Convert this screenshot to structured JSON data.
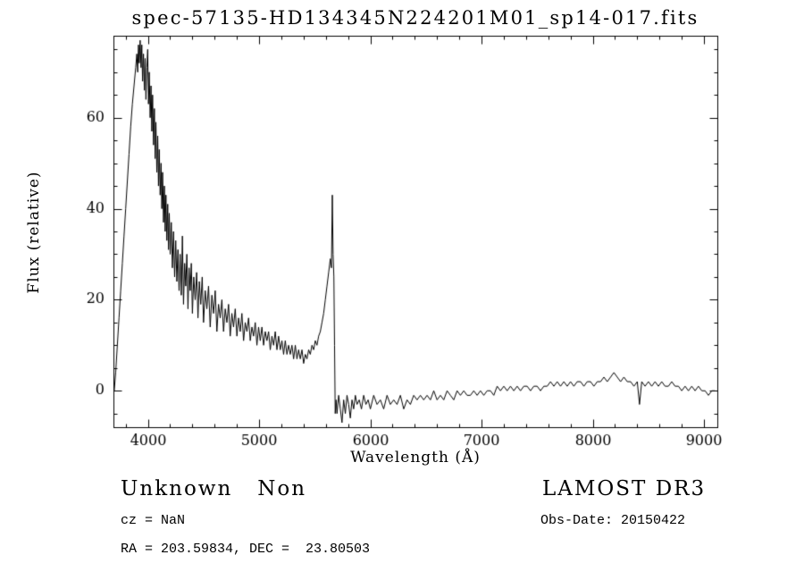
{
  "chart_data": {
    "type": "line",
    "title": "spec-57135-HD134345N224201M01_sp14-017.fits",
    "xlabel": "Wavelength (Å)",
    "ylabel": "Flux (relative)",
    "xlim": [
      3690,
      9120
    ],
    "ylim": [
      -8,
      78
    ],
    "xticks": [
      4000,
      5000,
      6000,
      7000,
      8000,
      9000
    ],
    "yticks": [
      0,
      20,
      40,
      60
    ],
    "x_minor_step": 200,
    "y_minor_step": 5,
    "grid": false,
    "legend": "none",
    "line_color": "#000000",
    "background_color": "#ffffff",
    "points": [
      [
        3697,
        0
      ],
      [
        3710,
        4
      ],
      [
        3725,
        10
      ],
      [
        3740,
        16
      ],
      [
        3755,
        22
      ],
      [
        3770,
        28
      ],
      [
        3785,
        34
      ],
      [
        3800,
        40
      ],
      [
        3815,
        46
      ],
      [
        3830,
        52
      ],
      [
        3845,
        58
      ],
      [
        3860,
        63
      ],
      [
        3875,
        67
      ],
      [
        3890,
        71
      ],
      [
        3900,
        74
      ],
      [
        3908,
        70
      ],
      [
        3915,
        76
      ],
      [
        3922,
        72
      ],
      [
        3930,
        77
      ],
      [
        3938,
        71
      ],
      [
        3945,
        76
      ],
      [
        3952,
        68
      ],
      [
        3960,
        74
      ],
      [
        3968,
        66
      ],
      [
        3975,
        73
      ],
      [
        3982,
        64
      ],
      [
        3990,
        71
      ],
      [
        3998,
        75
      ],
      [
        4005,
        63
      ],
      [
        4012,
        70
      ],
      [
        4020,
        60
      ],
      [
        4028,
        67
      ],
      [
        4035,
        57
      ],
      [
        4042,
        65
      ],
      [
        4050,
        54
      ],
      [
        4058,
        62
      ],
      [
        4065,
        51
      ],
      [
        4072,
        59
      ],
      [
        4080,
        48
      ],
      [
        4088,
        56
      ],
      [
        4095,
        45
      ],
      [
        4102,
        53
      ],
      [
        4110,
        43
      ],
      [
        4118,
        50
      ],
      [
        4125,
        40
      ],
      [
        4132,
        48
      ],
      [
        4140,
        37
      ],
      [
        4148,
        45
      ],
      [
        4155,
        35
      ],
      [
        4162,
        43
      ],
      [
        4170,
        33
      ],
      [
        4178,
        41
      ],
      [
        4185,
        31
      ],
      [
        4192,
        39
      ],
      [
        4200,
        30
      ],
      [
        4210,
        37
      ],
      [
        4220,
        27
      ],
      [
        4230,
        35
      ],
      [
        4240,
        25
      ],
      [
        4250,
        33
      ],
      [
        4260,
        24
      ],
      [
        4270,
        31
      ],
      [
        4280,
        22
      ],
      [
        4290,
        30
      ],
      [
        4300,
        21
      ],
      [
        4310,
        34
      ],
      [
        4320,
        19
      ],
      [
        4330,
        28
      ],
      [
        4340,
        23
      ],
      [
        4350,
        30
      ],
      [
        4360,
        18
      ],
      [
        4370,
        27
      ],
      [
        4380,
        22
      ],
      [
        4390,
        28
      ],
      [
        4400,
        17
      ],
      [
        4412,
        25
      ],
      [
        4425,
        20
      ],
      [
        4438,
        26
      ],
      [
        4450,
        16
      ],
      [
        4462,
        24
      ],
      [
        4475,
        19
      ],
      [
        4488,
        25
      ],
      [
        4500,
        15
      ],
      [
        4515,
        22
      ],
      [
        4530,
        18
      ],
      [
        4545,
        23
      ],
      [
        4560,
        14
      ],
      [
        4575,
        21
      ],
      [
        4590,
        17
      ],
      [
        4605,
        22
      ],
      [
        4620,
        13
      ],
      [
        4635,
        19
      ],
      [
        4650,
        16
      ],
      [
        4665,
        20
      ],
      [
        4680,
        13
      ],
      [
        4695,
        18
      ],
      [
        4710,
        15
      ],
      [
        4725,
        19
      ],
      [
        4740,
        12
      ],
      [
        4755,
        17
      ],
      [
        4770,
        14
      ],
      [
        4785,
        18
      ],
      [
        4800,
        12
      ],
      [
        4815,
        16
      ],
      [
        4830,
        13
      ],
      [
        4845,
        17
      ],
      [
        4860,
        11
      ],
      [
        4875,
        15
      ],
      [
        4890,
        13
      ],
      [
        4905,
        16
      ],
      [
        4920,
        11
      ],
      [
        4935,
        14
      ],
      [
        4950,
        12
      ],
      [
        4965,
        15
      ],
      [
        4980,
        10
      ],
      [
        4995,
        14
      ],
      [
        5010,
        11
      ],
      [
        5025,
        14
      ],
      [
        5040,
        10
      ],
      [
        5055,
        13
      ],
      [
        5070,
        11
      ],
      [
        5085,
        13
      ],
      [
        5100,
        9
      ],
      [
        5115,
        12
      ],
      [
        5130,
        10
      ],
      [
        5145,
        13
      ],
      [
        5160,
        9
      ],
      [
        5175,
        12
      ],
      [
        5190,
        9
      ],
      [
        5205,
        11
      ],
      [
        5220,
        8
      ],
      [
        5235,
        11
      ],
      [
        5250,
        8
      ],
      [
        5265,
        10
      ],
      [
        5280,
        8
      ],
      [
        5295,
        10
      ],
      [
        5310,
        7
      ],
      [
        5325,
        10
      ],
      [
        5340,
        7
      ],
      [
        5355,
        9
      ],
      [
        5370,
        7
      ],
      [
        5385,
        9
      ],
      [
        5400,
        6
      ],
      [
        5415,
        8
      ],
      [
        5430,
        7
      ],
      [
        5445,
        9
      ],
      [
        5460,
        8
      ],
      [
        5475,
        10
      ],
      [
        5490,
        9
      ],
      [
        5505,
        11
      ],
      [
        5520,
        10
      ],
      [
        5535,
        12
      ],
      [
        5550,
        13
      ],
      [
        5565,
        15
      ],
      [
        5580,
        17
      ],
      [
        5595,
        20
      ],
      [
        5610,
        23
      ],
      [
        5625,
        26
      ],
      [
        5640,
        29
      ],
      [
        5650,
        27
      ],
      [
        5658,
        43
      ],
      [
        5665,
        30
      ],
      [
        5672,
        25
      ],
      [
        5678,
        10
      ],
      [
        5684,
        -5
      ],
      [
        5692,
        -2
      ],
      [
        5700,
        -5
      ],
      [
        5715,
        -1
      ],
      [
        5730,
        -4
      ],
      [
        5745,
        -7
      ],
      [
        5760,
        -2
      ],
      [
        5775,
        -5
      ],
      [
        5790,
        -1
      ],
      [
        5805,
        -3
      ],
      [
        5820,
        -6
      ],
      [
        5835,
        -2
      ],
      [
        5850,
        -4
      ],
      [
        5865,
        -1
      ],
      [
        5880,
        -3
      ],
      [
        5900,
        -2
      ],
      [
        5920,
        -4
      ],
      [
        5940,
        -1
      ],
      [
        5960,
        -3
      ],
      [
        5980,
        -2
      ],
      [
        6000,
        -4
      ],
      [
        6030,
        -1
      ],
      [
        6060,
        -3
      ],
      [
        6090,
        -2
      ],
      [
        6120,
        -4
      ],
      [
        6150,
        -1
      ],
      [
        6180,
        -3
      ],
      [
        6210,
        -2
      ],
      [
        6240,
        -3
      ],
      [
        6270,
        -1
      ],
      [
        6300,
        -4
      ],
      [
        6330,
        -2
      ],
      [
        6360,
        -3
      ],
      [
        6390,
        -1
      ],
      [
        6420,
        -2
      ],
      [
        6450,
        -1
      ],
      [
        6480,
        -2
      ],
      [
        6510,
        -1
      ],
      [
        6540,
        -2
      ],
      [
        6570,
        0
      ],
      [
        6600,
        -2
      ],
      [
        6630,
        -1
      ],
      [
        6660,
        -2
      ],
      [
        6690,
        0
      ],
      [
        6720,
        -1
      ],
      [
        6750,
        -2
      ],
      [
        6780,
        0
      ],
      [
        6810,
        -1
      ],
      [
        6840,
        0
      ],
      [
        6870,
        -1
      ],
      [
        6900,
        -1
      ],
      [
        6930,
        0
      ],
      [
        6960,
        -1
      ],
      [
        6990,
        0
      ],
      [
        7020,
        -1
      ],
      [
        7050,
        0
      ],
      [
        7080,
        0
      ],
      [
        7110,
        -1
      ],
      [
        7140,
        1
      ],
      [
        7170,
        0
      ],
      [
        7200,
        1
      ],
      [
        7230,
        0
      ],
      [
        7260,
        1
      ],
      [
        7290,
        0
      ],
      [
        7320,
        1
      ],
      [
        7350,
        0
      ],
      [
        7380,
        1
      ],
      [
        7410,
        1
      ],
      [
        7440,
        0
      ],
      [
        7470,
        1
      ],
      [
        7500,
        1
      ],
      [
        7530,
        0
      ],
      [
        7560,
        1
      ],
      [
        7590,
        1
      ],
      [
        7620,
        2
      ],
      [
        7650,
        1
      ],
      [
        7680,
        2
      ],
      [
        7710,
        1
      ],
      [
        7740,
        2
      ],
      [
        7770,
        1
      ],
      [
        7800,
        2
      ],
      [
        7830,
        1
      ],
      [
        7860,
        2
      ],
      [
        7890,
        2
      ],
      [
        7920,
        1
      ],
      [
        7950,
        2
      ],
      [
        7980,
        2
      ],
      [
        8010,
        1
      ],
      [
        8040,
        2
      ],
      [
        8070,
        2
      ],
      [
        8100,
        3
      ],
      [
        8130,
        2
      ],
      [
        8160,
        3
      ],
      [
        8190,
        4
      ],
      [
        8220,
        3
      ],
      [
        8250,
        2
      ],
      [
        8280,
        3
      ],
      [
        8310,
        2
      ],
      [
        8340,
        2
      ],
      [
        8370,
        1
      ],
      [
        8400,
        2
      ],
      [
        8420,
        -3
      ],
      [
        8440,
        2
      ],
      [
        8470,
        1
      ],
      [
        8500,
        2
      ],
      [
        8530,
        1
      ],
      [
        8560,
        2
      ],
      [
        8590,
        1
      ],
      [
        8620,
        2
      ],
      [
        8650,
        1
      ],
      [
        8680,
        1
      ],
      [
        8710,
        2
      ],
      [
        8740,
        1
      ],
      [
        8770,
        1
      ],
      [
        8800,
        0
      ],
      [
        8830,
        1
      ],
      [
        8860,
        0
      ],
      [
        8890,
        1
      ],
      [
        8920,
        0
      ],
      [
        8950,
        1
      ],
      [
        8980,
        0
      ],
      [
        9010,
        0
      ],
      [
        9040,
        -1
      ],
      [
        9070,
        0
      ],
      [
        9100,
        0
      ]
    ]
  },
  "annotations": {
    "classification": "Unknown   Non",
    "cz": "cz = NaN",
    "radec": "RA = 203.59834, DEC =  23.80503",
    "survey": "LAMOST DR3",
    "obs_date": "Obs-Date: 20150422"
  }
}
